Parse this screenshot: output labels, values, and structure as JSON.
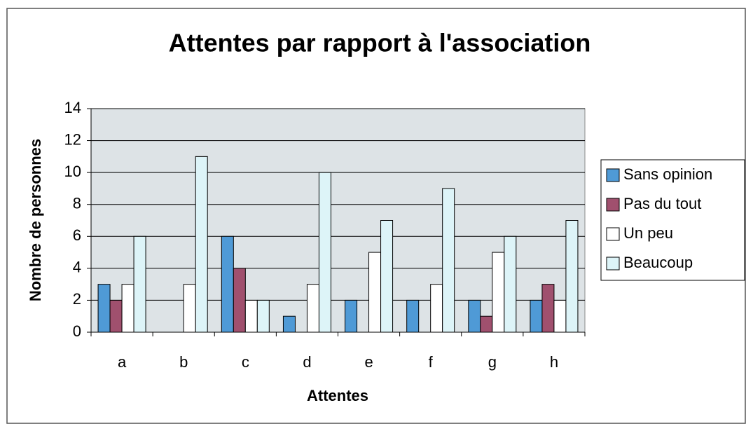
{
  "chart_data": {
    "type": "bar",
    "title": "Attentes par rapport à l'association",
    "x_label": "Attentes",
    "y_label": "Nombre de personnes",
    "categories": [
      "a",
      "b",
      "c",
      "d",
      "e",
      "f",
      "g",
      "h"
    ],
    "series": [
      {
        "name": "Sans opinion",
        "color": "#4f9ad6",
        "values": [
          3,
          0,
          6,
          1,
          2,
          2,
          2,
          2
        ]
      },
      {
        "name": "Pas du tout",
        "color": "#a0506e",
        "values": [
          2,
          0,
          4,
          0,
          0,
          0,
          1,
          3
        ]
      },
      {
        "name": "Un peu",
        "color": "#ffffff",
        "values": [
          3,
          3,
          2,
          3,
          5,
          3,
          5,
          2
        ]
      },
      {
        "name": "Beaucoup",
        "color": "#ddf4f8",
        "values": [
          6,
          11,
          2,
          10,
          7,
          9,
          6,
          7
        ]
      }
    ],
    "ylim": [
      0,
      14
    ],
    "yticks": [
      0,
      2,
      4,
      6,
      8,
      10,
      12,
      14
    ],
    "grid": true,
    "legend": "right"
  }
}
